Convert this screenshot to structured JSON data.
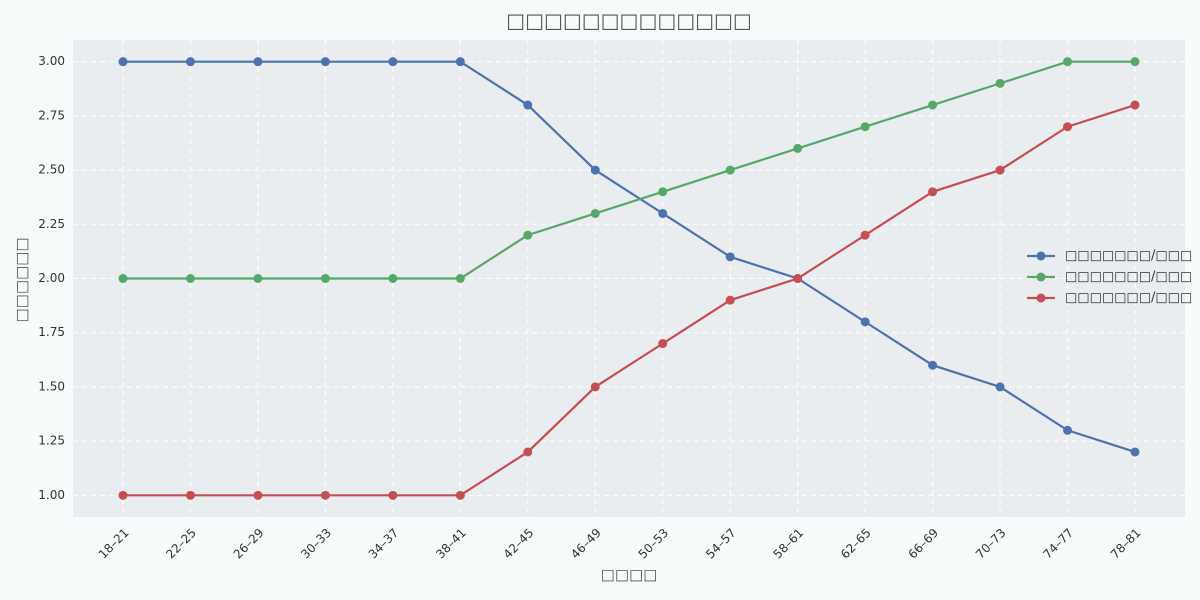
{
  "chart_data": {
    "type": "line",
    "title": "□□□□□□□□□□□□□",
    "x_label": "□□□□",
    "y_label": "□□□□□□",
    "categories": [
      "18–21",
      "22–25",
      "26–29",
      "30–33",
      "34–37",
      "38–41",
      "42–45",
      "46–49",
      "50–53",
      "54–57",
      "58–61",
      "62–65",
      "66–69",
      "70–73",
      "74–77",
      "78–81"
    ],
    "series": [
      {
        "name": "□□□□□□□/□□□",
        "color": "#4c72b0",
        "values": [
          3,
          3,
          3,
          3,
          3,
          3,
          2.8,
          2.5,
          2.3,
          2.1,
          2.0,
          1.8,
          1.6,
          1.5,
          1.3,
          1.2
        ]
      },
      {
        "name": "□□□□□□□/□□□",
        "color": "#55a868",
        "values": [
          2,
          2,
          2,
          2,
          2,
          2,
          2.2,
          2.3,
          2.4,
          2.5,
          2.6,
          2.7,
          2.8,
          2.9,
          3.0,
          3.0
        ]
      },
      {
        "name": "□□□□□□□/□□□",
        "color": "#c44e52",
        "values": [
          1,
          1,
          1,
          1,
          1,
          1,
          1.2,
          1.5,
          1.7,
          1.9,
          2.0,
          2.2,
          2.4,
          2.5,
          2.7,
          2.8
        ]
      }
    ],
    "ylim": [
      0.9,
      3.1
    ],
    "yticks": [
      {
        "value": 1,
        "label": "1.00"
      },
      {
        "value": 1.25,
        "label": "1.25"
      },
      {
        "value": 1.5,
        "label": "1.50"
      },
      {
        "value": 1.75,
        "label": "1.75"
      },
      {
        "value": 2,
        "label": "2.00"
      },
      {
        "value": 2.25,
        "label": "2.25"
      },
      {
        "value": 2.5,
        "label": "2.50"
      },
      {
        "value": 2.75,
        "label": "2.75"
      },
      {
        "value": 3,
        "label": "3.00"
      }
    ],
    "grid": true,
    "legend": "right"
  }
}
